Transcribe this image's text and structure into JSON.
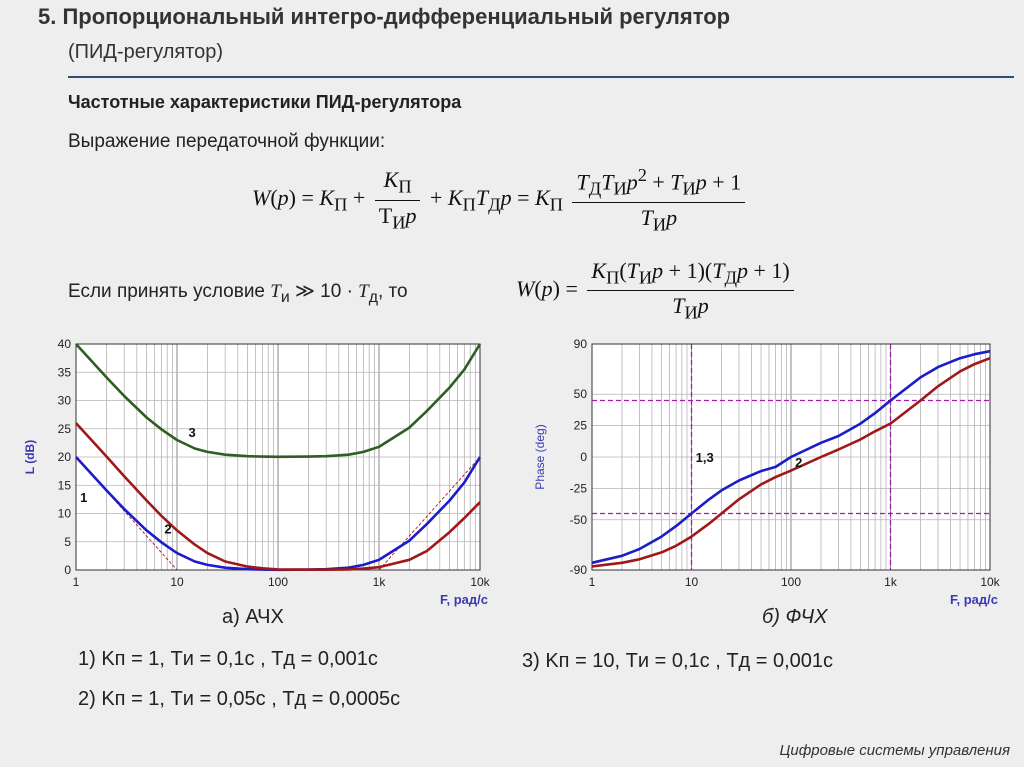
{
  "slide": {
    "title": "5. Пропорциональный интегро-дифференциальный регулятор",
    "subtitle": "(ПИД-регулятор)",
    "heading": "Частотные характеристики ПИД-регулятора",
    "expression_label": "Выражение передаточной функции:",
    "condition_prefix": "Если принять условие",
    "condition_suffix": ", то",
    "footer": "Цифровые системы управления"
  },
  "captions": {
    "amp": "а) АЧХ",
    "phase": "б) ФЧХ"
  },
  "params": {
    "p1": "1) Kп = 1,  Tи = 0,1с ,  Tд = 0,001с",
    "p2": "2) Kп = 1,  Tи = 0,05с ,  Tд = 0,0005с",
    "p3": "3) Kп = 10,  Tи = 0,1с ,  Tд = 0,001с"
  },
  "colors": {
    "blue": "#1c1cc8",
    "red": "#a01818",
    "green": "#2e5e22",
    "axis": "#000000",
    "grid": "#b4b4b4",
    "label": "#3a3ab4",
    "guide": "#9e1ea8"
  },
  "chart_data": [
    {
      "type": "line",
      "xscale": "log",
      "xlim": [
        1,
        10000
      ],
      "ylim": [
        0,
        40
      ],
      "xticks": [
        "1",
        "10",
        "100",
        "1k",
        "10k"
      ],
      "yticks": [
        "0",
        "5",
        "10",
        "15",
        "20",
        "25",
        "30",
        "35",
        "40"
      ],
      "ylabel": "L (dB)",
      "xlabel": "F, рад/с",
      "series": [
        {
          "name": "1",
          "color": "blue",
          "x": [
            1,
            2,
            3,
            5,
            7,
            10,
            15,
            20,
            30,
            50,
            70,
            100,
            200,
            300,
            500,
            700,
            1000,
            2000,
            3000,
            5000,
            7000,
            10000
          ],
          "y": [
            20,
            14.1,
            10.8,
            7.0,
            4.9,
            3.0,
            1.5,
            0.9,
            0.4,
            0.15,
            0.07,
            0.04,
            0.07,
            0.15,
            0.4,
            0.9,
            1.8,
            5.2,
            8.2,
            12.3,
            15.5,
            20
          ]
        },
        {
          "name": "2",
          "color": "red",
          "x": [
            1,
            2,
            3,
            5,
            7,
            10,
            15,
            20,
            30,
            50,
            70,
            100,
            200,
            300,
            500,
            700,
            1000,
            2000,
            3000,
            5000,
            7000,
            10000
          ],
          "y": [
            26,
            20.1,
            16.6,
            12.3,
            9.6,
            7.0,
            4.5,
            3.0,
            1.5,
            0.6,
            0.3,
            0.1,
            0.05,
            0.05,
            0.1,
            0.25,
            0.5,
            1.8,
            3.4,
            6.7,
            9.2,
            12
          ]
        },
        {
          "name": "3",
          "color": "green",
          "x": [
            1,
            2,
            3,
            5,
            7,
            10,
            15,
            20,
            30,
            50,
            70,
            100,
            200,
            300,
            500,
            700,
            1000,
            2000,
            3000,
            5000,
            7000,
            10000
          ],
          "y": [
            40,
            34.1,
            30.8,
            27.0,
            24.9,
            23.0,
            21.5,
            20.9,
            20.4,
            20.15,
            20.07,
            20.04,
            20.07,
            20.15,
            20.4,
            20.9,
            21.8,
            25.2,
            28.2,
            32.3,
            35.5,
            40
          ]
        }
      ],
      "asymptotes": [
        {
          "color": "red",
          "x": [
            1,
            10
          ],
          "y": [
            20,
            0
          ]
        },
        {
          "color": "red",
          "x": [
            1000,
            10000
          ],
          "y": [
            0,
            20
          ]
        }
      ],
      "annotations": [
        "1",
        "2",
        "3"
      ]
    },
    {
      "type": "line",
      "xscale": "log",
      "xlim": [
        1,
        10000
      ],
      "ylim": [
        -90,
        90
      ],
      "xticks": [
        "1",
        "10",
        "100",
        "1k",
        "10k"
      ],
      "yticks": [
        "-90",
        "-50",
        "-25",
        "0",
        "25",
        "50",
        "90"
      ],
      "ylabel": "Phase (deg)",
      "xlabel": "F, рад/с",
      "series": [
        {
          "name": "1,3",
          "color": "blue",
          "x": [
            1,
            2,
            3,
            5,
            7,
            10,
            15,
            20,
            30,
            50,
            70,
            100,
            200,
            300,
            500,
            700,
            1000,
            2000,
            3000,
            5000,
            7000,
            10000
          ],
          "y": [
            -84.3,
            -78.7,
            -73.3,
            -63.4,
            -55.0,
            -45.0,
            -33.8,
            -26.6,
            -18.7,
            -11.2,
            -7.9,
            0,
            11.3,
            16.7,
            26.6,
            35.0,
            45.0,
            63.4,
            71.6,
            78.7,
            81.9,
            84.3
          ]
        },
        {
          "name": "2",
          "color": "red",
          "x": [
            1,
            2,
            3,
            5,
            7,
            10,
            15,
            20,
            30,
            50,
            70,
            100,
            200,
            300,
            500,
            700,
            1000,
            2000,
            3000,
            5000,
            7000,
            10000
          ],
          "y": [
            -87.1,
            -84.3,
            -81.5,
            -76.0,
            -70.7,
            -63.4,
            -53.1,
            -45.0,
            -33.7,
            -21.8,
            -16.0,
            -10.8,
            0.0,
            6.0,
            14.0,
            20.5,
            26.6,
            45.0,
            56.3,
            68.2,
            74.0,
            78.7
          ]
        }
      ],
      "guides": {
        "x": [
          10,
          1000
        ],
        "y": [
          45,
          -45
        ]
      },
      "annotations": [
        "1,3",
        "2"
      ]
    }
  ]
}
